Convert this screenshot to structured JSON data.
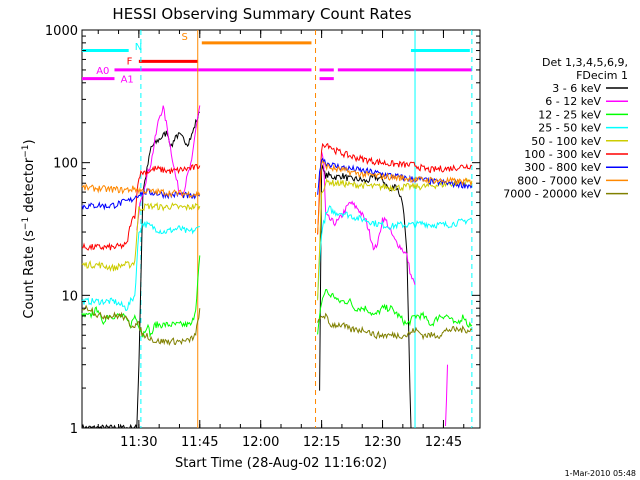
{
  "chart_data": {
    "type": "line",
    "title": "HESSI Observing Summary Count Rates",
    "xlabel": "Start Time (28-Aug-02 11:16:02)",
    "ylabel_main": "Count Rate (s",
    "ylabel_sup": "−1",
    "ylabel_mid": " detector",
    "ylabel_end": ")",
    "x_unit": "minutes after 11:16:02",
    "xlim": [
      0,
      98
    ],
    "ylim": [
      1,
      1000
    ],
    "yscale": "log",
    "x_ticks": [
      {
        "label": "11:30",
        "x": 14
      },
      {
        "label": "11:45",
        "x": 29
      },
      {
        "label": "12:00",
        "x": 44
      },
      {
        "label": "12:15",
        "x": 59
      },
      {
        "label": "12:30",
        "x": 74
      },
      {
        "label": "12:45",
        "x": 89
      }
    ],
    "y_ticks": [
      {
        "label": "1",
        "v": 1
      },
      {
        "label": "10",
        "v": 10
      },
      {
        "label": "100",
        "v": 100
      },
      {
        "label": "1000",
        "v": 1000
      }
    ],
    "timestamp": "1-Mar-2010 05:48",
    "legend_title": [
      "Det 1,3,4,5,6,9,",
      "FDecim 1"
    ],
    "gaps": [
      [
        29,
        59
      ],
      [
        82,
        96
      ]
    ],
    "series": [
      {
        "name": "3 - 6 keV",
        "color": "#000000",
        "segments": [
          {
            "x": [
              0,
              12,
              13.5,
              14,
              15,
              17,
              19,
              21,
              22,
              23,
              24,
              25,
              26,
              27,
              28,
              29
            ],
            "y": [
              1,
              1,
              1,
              3,
              60,
              130,
              150,
              170,
              130,
              160,
              160,
              150,
              140,
              160,
              200,
              240
            ]
          },
          {
            "x": [
              58.5,
              59,
              59.5,
              60,
              61,
              62,
              63,
              64,
              66,
              68,
              70,
              72,
              74,
              76,
              77,
              78,
              79,
              80,
              81
            ],
            "y": [
              2,
              95,
              85,
              80,
              80,
              78,
              78,
              80,
              75,
              75,
              72,
              78,
              75,
              60,
              70,
              60,
              50,
              20,
              1
            ]
          }
        ]
      },
      {
        "name": "6 - 12 keV",
        "color": "#ff00ff",
        "segments": [
          {
            "x": [
              13.5,
              14.5,
              15,
              16,
              17,
              18,
              19,
              20,
              21,
              22,
              23,
              24,
              25,
              26,
              27,
              28,
              29
            ],
            "y": [
              30,
              55,
              60,
              80,
              100,
              150,
              220,
              260,
              180,
              120,
              80,
              60,
              60,
              80,
              100,
              180,
              270
            ]
          },
          {
            "x": [
              59,
              59.5,
              60,
              62,
              63,
              64,
              66,
              68,
              70,
              71,
              72,
              73,
              74,
              75,
              76,
              77,
              78,
              79,
              80,
              81,
              82
            ],
            "y": [
              120,
              100,
              40,
              35,
              36,
              40,
              50,
              45,
              36,
              28,
              22,
              26,
              38,
              36,
              30,
              26,
              24,
              22,
              20,
              14,
              12
            ]
          },
          {
            "x": [
              89.5,
              90
            ],
            "y": [
              1,
              3
            ]
          }
        ]
      },
      {
        "name": "12 - 25 keV",
        "color": "#00ff00",
        "segments": [
          {
            "x": [
              0,
              2,
              4,
              5,
              6,
              8,
              10,
              12,
              13,
              14,
              15,
              16,
              17,
              18,
              19,
              20,
              21,
              22,
              23,
              24,
              25,
              26,
              27,
              28,
              29
            ],
            "y": [
              7,
              7,
              8,
              6,
              7,
              7,
              7,
              6,
              7,
              6,
              5,
              6,
              5,
              6,
              6,
              6,
              6,
              6,
              6,
              6,
              6,
              6,
              6,
              8,
              20
            ]
          },
          {
            "x": [
              58,
              59,
              60,
              61,
              62,
              63,
              64,
              65,
              66,
              67,
              68,
              70,
              72,
              74,
              76,
              78,
              80,
              82,
              84,
              86,
              88,
              90,
              92,
              94,
              95,
              96
            ],
            "y": [
              5,
              9,
              11,
              10,
              10,
              9,
              9,
              9,
              9,
              8,
              8,
              8,
              7,
              8,
              8,
              7,
              6,
              7,
              7,
              6,
              7,
              7,
              6,
              7,
              6,
              6
            ]
          }
        ]
      },
      {
        "name": "25 - 50 keV",
        "color": "#00ffff",
        "segments": [
          {
            "x": [
              0,
              4,
              8,
              11,
              12,
              13,
              14,
              15,
              16,
              18,
              20,
              22,
              24,
              26,
              28,
              29
            ],
            "y": [
              9,
              9,
              9,
              8,
              9,
              10,
              30,
              35,
              34,
              32,
              30,
              31,
              32,
              30,
              31,
              33
            ]
          },
          {
            "x": [
              58,
              59,
              60,
              61,
              62,
              64,
              66,
              68,
              70,
              72,
              74,
              76,
              78,
              80,
              82,
              84,
              86,
              88,
              90,
              92,
              94,
              96
            ],
            "y": [
              10,
              30,
              40,
              45,
              42,
              42,
              40,
              38,
              37,
              35,
              34,
              33,
              34,
              34,
              34,
              35,
              34,
              34,
              34,
              35,
              36,
              38
            ]
          }
        ]
      },
      {
        "name": "50 - 100 keV",
        "color": "#cccc00",
        "segments": [
          {
            "x": [
              0,
              4,
              8,
              10,
              12,
              13,
              14,
              16,
              18,
              20,
              22,
              24,
              26,
              28,
              29
            ],
            "y": [
              17,
              17,
              16,
              17,
              17,
              18,
              45,
              47,
              47,
              46,
              47,
              46,
              46,
              47,
              47
            ]
          },
          {
            "x": [
              58,
              59,
              60,
              61,
              62,
              64,
              66,
              68,
              70,
              72,
              74,
              76,
              78,
              80,
              82,
              84,
              86,
              88,
              90,
              92,
              94,
              96
            ],
            "y": [
              9,
              60,
              70,
              72,
              70,
              70,
              68,
              68,
              67,
              66,
              66,
              65,
              65,
              66,
              66,
              66,
              67,
              68,
              69,
              70,
              71,
              73
            ]
          }
        ]
      },
      {
        "name": "100 - 300 keV",
        "color": "#ff0000",
        "segments": [
          {
            "x": [
              0,
              4,
              8,
              11,
              12,
              13,
              14,
              15,
              16,
              18,
              20,
              22,
              24,
              26,
              28,
              29
            ],
            "y": [
              23,
              23,
              23,
              24,
              35,
              40,
              80,
              85,
              85,
              90,
              88,
              86,
              88,
              90,
              92,
              95
            ]
          },
          {
            "x": [
              58,
              59,
              60,
              61,
              62,
              64,
              66,
              68,
              70,
              72,
              74,
              76,
              78,
              80,
              82,
              84,
              86,
              88,
              90,
              92,
              94,
              96
            ],
            "y": [
              30,
              130,
              140,
              135,
              125,
              118,
              112,
              108,
              105,
              102,
              100,
              98,
              97,
              96,
              96,
              90,
              88,
              90,
              90,
              92,
              94,
              95
            ]
          }
        ]
      },
      {
        "name": "300 - 800 keV",
        "color": "#0000ff",
        "segments": [
          {
            "x": [
              0,
              2,
              4,
              6,
              8,
              10,
              12,
              13,
              14,
              15,
              16,
              18,
              20,
              22,
              24,
              26,
              28,
              29
            ],
            "y": [
              47,
              47,
              48,
              47,
              48,
              50,
              52,
              55,
              58,
              60,
              60,
              59,
              58,
              57,
              58,
              56,
              55,
              56
            ]
          },
          {
            "x": [
              58,
              59,
              60,
              61,
              62,
              64,
              66,
              68,
              70,
              72,
              74,
              76,
              78,
              80,
              82,
              84,
              86,
              88,
              90,
              92,
              94,
              96
            ],
            "y": [
              60,
              110,
              100,
              98,
              95,
              92,
              90,
              88,
              86,
              84,
              82,
              80,
              78,
              76,
              75,
              74,
              72,
              71,
              70,
              69,
              68,
              67
            ]
          }
        ]
      },
      {
        "name": "800 - 7000 keV",
        "color": "#ff8800",
        "segments": [
          {
            "x": [
              0,
              2,
              4,
              6,
              8,
              10,
              12,
              13,
              14,
              16,
              18,
              20,
              22,
              24,
              26,
              28,
              29
            ],
            "y": [
              65,
              64,
              64,
              63,
              63,
              62,
              63,
              64,
              62,
              61,
              60,
              60,
              59,
              59,
              58,
              58,
              57
            ]
          },
          {
            "x": [
              58,
              59,
              60,
              61,
              62,
              64,
              66,
              68,
              70,
              72,
              74,
              76,
              78,
              80,
              82,
              84,
              86,
              88,
              90,
              92,
              94,
              96
            ],
            "y": [
              30,
              100,
              95,
              92,
              90,
              88,
              85,
              83,
              81,
              80,
              79,
              78,
              77,
              76,
              75,
              74,
              74,
              73,
              73,
              72,
              72,
              71
            ]
          }
        ]
      },
      {
        "name": "7000 - 20000 keV",
        "color": "#808000",
        "segments": [
          {
            "x": [
              0,
              2,
              4,
              6,
              8,
              10,
              12,
              13,
              14,
              15,
              16,
              18,
              20,
              22,
              24,
              26,
              28,
              29
            ],
            "y": [
              8,
              8,
              7,
              7,
              7,
              7,
              6,
              6,
              6,
              5,
              5,
              4.5,
              4.5,
              4.5,
              4.5,
              4.5,
              5,
              8
            ]
          },
          {
            "x": [
              58,
              59,
              60,
              61,
              62,
              64,
              66,
              68,
              70,
              72,
              74,
              76,
              78,
              80,
              82,
              84,
              86,
              88,
              90,
              92,
              94,
              96
            ],
            "y": [
              6,
              7,
              7,
              6,
              6,
              6,
              5.5,
              5.5,
              5.5,
              5,
              5,
              5,
              5,
              5,
              5.5,
              5,
              5,
              5,
              5.5,
              5.5,
              5.5,
              5.5
            ]
          }
        ]
      }
    ],
    "flags": [
      {
        "label": "N",
        "color": "#00ffff",
        "label_x": 13,
        "label_v": 760,
        "bars": [
          {
            "x1": 0,
            "x2": 11.5,
            "v": 700
          },
          {
            "x1": 81,
            "x2": 95.5,
            "v": 700
          }
        ]
      },
      {
        "label": "S",
        "color": "#ff8800",
        "label_x": 24.5,
        "label_v": 900,
        "bars": [
          {
            "x1": 29.5,
            "x2": 56.5,
            "v": 800
          }
        ]
      },
      {
        "label": "F",
        "color": "#ff0000",
        "label_x": 11,
        "label_v": 590,
        "bars": [
          {
            "x1": 14,
            "x2": 28.5,
            "v": 580
          }
        ]
      },
      {
        "label": "A0",
        "color": "#ff00ff",
        "label_x": 3.5,
        "label_v": 500,
        "bars": [
          {
            "x1": 8,
            "x2": 56.5,
            "v": 500
          },
          {
            "x1": 58.5,
            "x2": 62,
            "v": 500
          },
          {
            "x1": 63,
            "x2": 96,
            "v": 500
          }
        ]
      },
      {
        "label": "A1",
        "color": "#ff00ff",
        "label_x": 9.5,
        "label_v": 430,
        "bars": [
          {
            "x1": 0,
            "x2": 8,
            "v": 430
          },
          {
            "x1": 58.5,
            "x2": 62,
            "v": 430
          }
        ]
      }
    ],
    "vlines": [
      {
        "x": 14.5,
        "color": "#00ffff",
        "dash": true
      },
      {
        "x": 28.5,
        "color": "#ff8800",
        "dash": false
      },
      {
        "x": 57.5,
        "color": "#ff8800",
        "dash": true
      },
      {
        "x": 82,
        "color": "#00ffff",
        "dash": false
      },
      {
        "x": 96,
        "color": "#00ffff",
        "dash": true
      }
    ]
  }
}
